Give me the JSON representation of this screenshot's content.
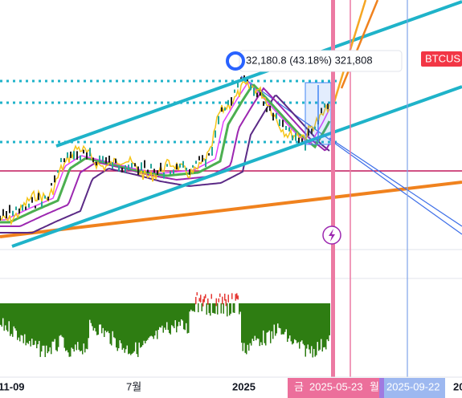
{
  "tooltip": {
    "text": "32,180.8 (43.18%) 321,808"
  },
  "symbol_label": "BTCUS",
  "time_axis": {
    "labels": [
      "11-09",
      "7월",
      "2025"
    ],
    "highlights": [
      "금",
      "2025-05-23",
      "월",
      "2025-09-22"
    ],
    "end_label": "20"
  }
}
